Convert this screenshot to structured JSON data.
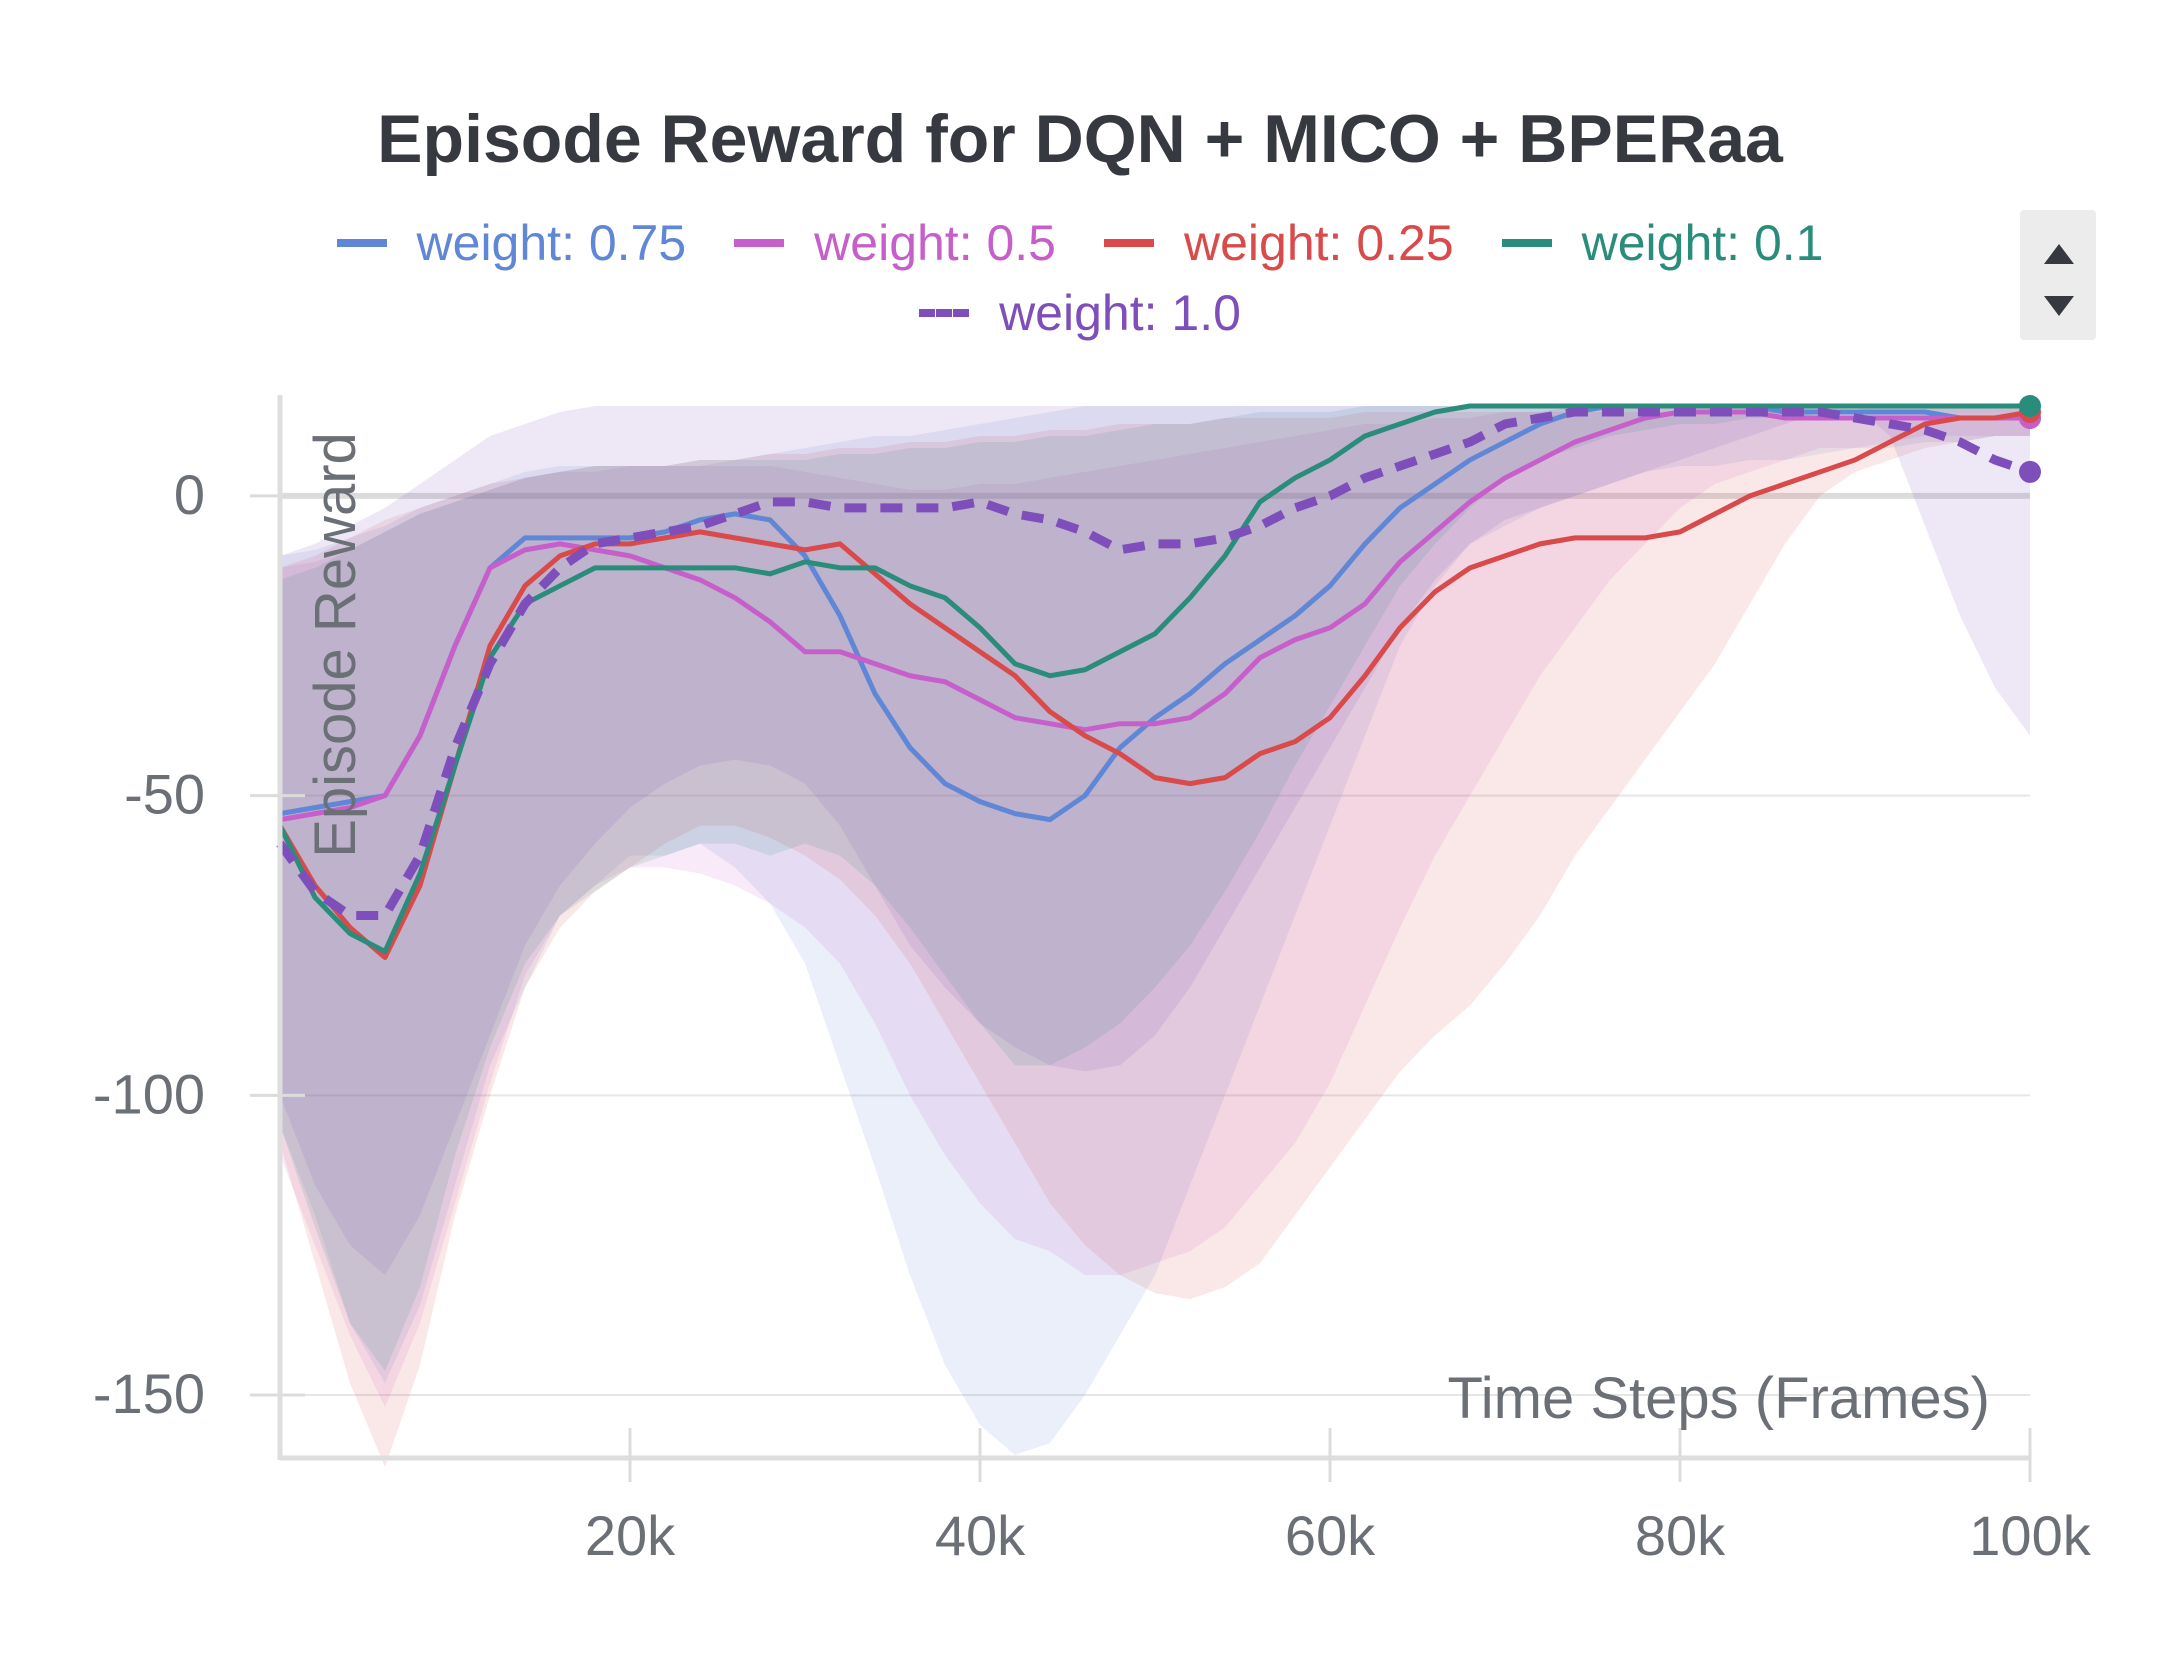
{
  "chart_data": {
    "type": "line",
    "title": "Episode Reward for DQN + MICO + BPERaa",
    "xlabel": "Time Steps (Frames)",
    "ylabel": "Episode Reward",
    "xlim": [
      0,
      100000
    ],
    "ylim": [
      -160,
      16
    ],
    "x_ticks": [
      20000,
      40000,
      60000,
      80000,
      100000
    ],
    "x_tick_labels": [
      "20k",
      "40k",
      "60k",
      "80k",
      "100k"
    ],
    "y_ticks": [
      0,
      -50,
      -100,
      -150
    ],
    "y_tick_labels": [
      "0",
      "-50",
      "-100",
      "-150"
    ],
    "grid": true,
    "legend": "top",
    "series": [
      {
        "name": "weight: 0.75",
        "color": "#5f87d6",
        "dash": false,
        "x": [
          0,
          2000,
          4000,
          6000,
          8000,
          10000,
          12000,
          14000,
          16000,
          18000,
          20000,
          22000,
          24000,
          26000,
          28000,
          30000,
          32000,
          34000,
          36000,
          38000,
          40000,
          42000,
          44000,
          46000,
          48000,
          50000,
          52000,
          54000,
          56000,
          58000,
          60000,
          62000,
          64000,
          66000,
          68000,
          70000,
          72000,
          74000,
          76000,
          78000,
          80000,
          82000,
          84000,
          86000,
          88000,
          90000,
          92000,
          94000,
          96000,
          98000,
          100000
        ],
        "y": [
          -53,
          -52,
          -51,
          -50,
          -40,
          -25,
          -12,
          -7,
          -7,
          -7,
          -7,
          -6,
          -4,
          -3,
          -4,
          -10,
          -20,
          -33,
          -42,
          -48,
          -51,
          -53,
          -54,
          -50,
          -42,
          -37,
          -33,
          -28,
          -24,
          -20,
          -15,
          -8,
          -2,
          2,
          6,
          9,
          12,
          14,
          15,
          15,
          15,
          15,
          15,
          14,
          14,
          14,
          14,
          14,
          13,
          13,
          13
        ],
        "upper": [
          -10,
          -9,
          -7,
          -5,
          -2,
          0,
          2,
          4,
          5,
          5,
          5,
          5,
          5,
          6,
          7,
          8,
          9,
          10,
          10,
          11,
          12,
          13,
          14,
          15,
          15,
          15,
          15,
          15,
          15,
          15,
          15,
          15,
          15,
          15,
          15,
          15,
          15,
          15,
          15,
          15,
          15,
          15,
          15,
          15,
          15,
          15,
          15,
          15,
          15,
          15,
          15
        ],
        "lower": [
          -105,
          -120,
          -138,
          -148,
          -135,
          -115,
          -95,
          -82,
          -70,
          -65,
          -60,
          -60,
          -58,
          -62,
          -68,
          -78,
          -95,
          -112,
          -130,
          -145,
          -155,
          -160,
          -158,
          -150,
          -140,
          -130,
          -115,
          -100,
          -85,
          -70,
          -55,
          -40,
          -25,
          -15,
          -8,
          -5,
          -2,
          0,
          2,
          4,
          5,
          5,
          6,
          6,
          7,
          8,
          8,
          9,
          9,
          10,
          10
        ]
      },
      {
        "name": "weight: 0.5",
        "color": "#c75fcb",
        "dash": false,
        "x": [
          0,
          2000,
          4000,
          6000,
          8000,
          10000,
          12000,
          14000,
          16000,
          18000,
          20000,
          22000,
          24000,
          26000,
          28000,
          30000,
          32000,
          34000,
          36000,
          38000,
          40000,
          42000,
          44000,
          46000,
          48000,
          50000,
          52000,
          54000,
          56000,
          58000,
          60000,
          62000,
          64000,
          66000,
          68000,
          70000,
          72000,
          74000,
          76000,
          78000,
          80000,
          82000,
          84000,
          86000,
          88000,
          90000,
          92000,
          94000,
          96000,
          98000,
          100000
        ],
        "y": [
          -54,
          -53,
          -52,
          -50,
          -40,
          -25,
          -12,
          -9,
          -8,
          -9,
          -10,
          -12,
          -14,
          -17,
          -21,
          -26,
          -26,
          -28,
          -30,
          -31,
          -34,
          -37,
          -38,
          -39,
          -38,
          -38,
          -37,
          -33,
          -27,
          -24,
          -22,
          -18,
          -11,
          -6,
          -1,
          3,
          6,
          9,
          11,
          13,
          14,
          14,
          14,
          13,
          13,
          13,
          13,
          13,
          13,
          13,
          13
        ],
        "upper": [
          -12,
          -11,
          -9,
          -6,
          -3,
          -1,
          1,
          3,
          4,
          4,
          5,
          5,
          5,
          5,
          5,
          4,
          3,
          2,
          1,
          1,
          2,
          2,
          3,
          4,
          5,
          6,
          7,
          8,
          9,
          10,
          11,
          12,
          12,
          13,
          13,
          14,
          14,
          14,
          14,
          14,
          14,
          14,
          14,
          14,
          14,
          14,
          14,
          14,
          14,
          14,
          14
        ],
        "lower": [
          -110,
          -125,
          -140,
          -152,
          -138,
          -118,
          -98,
          -80,
          -70,
          -65,
          -62,
          -62,
          -63,
          -65,
          -68,
          -72,
          -78,
          -88,
          -100,
          -110,
          -118,
          -124,
          -126,
          -130,
          -130,
          -128,
          -126,
          -122,
          -115,
          -108,
          -98,
          -85,
          -72,
          -60,
          -50,
          -40,
          -30,
          -22,
          -14,
          -8,
          -2,
          2,
          4,
          6,
          8,
          8,
          9,
          10,
          10,
          10,
          10
        ]
      },
      {
        "name": "weight: 0.25",
        "color": "#d94a4a",
        "dash": false,
        "x": [
          0,
          2000,
          4000,
          6000,
          8000,
          10000,
          12000,
          14000,
          16000,
          18000,
          20000,
          22000,
          24000,
          26000,
          28000,
          30000,
          32000,
          34000,
          36000,
          38000,
          40000,
          42000,
          44000,
          46000,
          48000,
          50000,
          52000,
          54000,
          56000,
          58000,
          60000,
          62000,
          64000,
          66000,
          68000,
          70000,
          72000,
          74000,
          76000,
          78000,
          80000,
          82000,
          84000,
          86000,
          88000,
          90000,
          92000,
          94000,
          96000,
          98000,
          100000
        ],
        "y": [
          -55,
          -65,
          -72,
          -77,
          -65,
          -45,
          -25,
          -15,
          -10,
          -8,
          -8,
          -7,
          -6,
          -7,
          -8,
          -9,
          -8,
          -13,
          -18,
          -22,
          -26,
          -30,
          -36,
          -40,
          -43,
          -47,
          -48,
          -47,
          -43,
          -41,
          -37,
          -30,
          -22,
          -16,
          -12,
          -10,
          -8,
          -7,
          -7,
          -7,
          -6,
          -3,
          0,
          2,
          4,
          6,
          9,
          12,
          13,
          13,
          14
        ],
        "upper": [
          -12,
          -10,
          -7,
          -4,
          -2,
          0,
          2,
          3,
          4,
          5,
          5,
          5,
          6,
          6,
          7,
          7,
          8,
          8,
          9,
          9,
          10,
          10,
          11,
          11,
          12,
          12,
          12,
          13,
          13,
          13,
          13,
          14,
          14,
          14,
          14,
          14,
          14,
          15,
          15,
          15,
          15,
          15,
          15,
          15,
          15,
          15,
          15,
          15,
          15,
          15,
          15
        ],
        "lower": [
          -108,
          -128,
          -148,
          -162,
          -145,
          -120,
          -100,
          -82,
          -72,
          -66,
          -62,
          -58,
          -55,
          -55,
          -57,
          -60,
          -64,
          -70,
          -78,
          -88,
          -98,
          -108,
          -118,
          -125,
          -130,
          -133,
          -134,
          -132,
          -128,
          -120,
          -112,
          -104,
          -96,
          -90,
          -85,
          -78,
          -70,
          -60,
          -52,
          -44,
          -36,
          -28,
          -18,
          -8,
          0,
          4,
          6,
          8,
          9,
          10,
          10
        ]
      },
      {
        "name": "weight: 0.1",
        "color": "#2a8c7a",
        "dash": false,
        "x": [
          0,
          2000,
          4000,
          6000,
          8000,
          10000,
          12000,
          14000,
          16000,
          18000,
          20000,
          22000,
          24000,
          26000,
          28000,
          30000,
          32000,
          34000,
          36000,
          38000,
          40000,
          42000,
          44000,
          46000,
          48000,
          50000,
          52000,
          54000,
          56000,
          58000,
          60000,
          62000,
          64000,
          66000,
          68000,
          70000,
          72000,
          74000,
          76000,
          78000,
          80000,
          82000,
          84000,
          86000,
          88000,
          90000,
          92000,
          94000,
          96000,
          98000,
          100000
        ],
        "y": [
          -55,
          -67,
          -73,
          -76,
          -63,
          -45,
          -27,
          -18,
          -15,
          -12,
          -12,
          -12,
          -12,
          -12,
          -13,
          -11,
          -12,
          -12,
          -15,
          -17,
          -22,
          -28,
          -30,
          -29,
          -26,
          -23,
          -17,
          -10,
          -1,
          3,
          6,
          10,
          12,
          14,
          15,
          15,
          15,
          15,
          15,
          15,
          15,
          15,
          15,
          15,
          15,
          15,
          15,
          15,
          15,
          15,
          15
        ],
        "upper": [
          -14,
          -12,
          -9,
          -6,
          -3,
          -1,
          1,
          3,
          4,
          5,
          5,
          5,
          6,
          6,
          6,
          6,
          7,
          7,
          8,
          8,
          9,
          9,
          10,
          10,
          11,
          12,
          12,
          13,
          14,
          14,
          14,
          15,
          15,
          15,
          15,
          15,
          15,
          15,
          15,
          15,
          15,
          15,
          15,
          15,
          15,
          15,
          15,
          15,
          15,
          15,
          15
        ],
        "lower": [
          -105,
          -122,
          -138,
          -146,
          -132,
          -110,
          -92,
          -78,
          -70,
          -66,
          -62,
          -60,
          -58,
          -58,
          -60,
          -58,
          -60,
          -65,
          -72,
          -80,
          -88,
          -95,
          -95,
          -92,
          -88,
          -82,
          -75,
          -66,
          -56,
          -45,
          -35,
          -25,
          -15,
          -8,
          -2,
          3,
          6,
          8,
          10,
          11,
          12,
          12,
          13,
          13,
          13,
          14,
          14,
          14,
          14,
          14,
          14
        ]
      },
      {
        "name": "weight: 1.0",
        "color": "#7e4fbb",
        "dash": true,
        "x": [
          0,
          2000,
          4000,
          6000,
          8000,
          10000,
          12000,
          14000,
          16000,
          18000,
          20000,
          22000,
          24000,
          26000,
          28000,
          30000,
          32000,
          34000,
          36000,
          38000,
          40000,
          42000,
          44000,
          46000,
          48000,
          50000,
          52000,
          54000,
          56000,
          58000,
          60000,
          62000,
          64000,
          66000,
          68000,
          70000,
          72000,
          74000,
          76000,
          78000,
          80000,
          82000,
          84000,
          86000,
          88000,
          90000,
          92000,
          94000,
          96000,
          98000,
          100000
        ],
        "y": [
          -58,
          -66,
          -70,
          -70,
          -60,
          -42,
          -28,
          -18,
          -12,
          -8,
          -7,
          -6,
          -5,
          -3,
          -1,
          -1,
          -2,
          -2,
          -2,
          -2,
          -1,
          -3,
          -4,
          -6,
          -9,
          -8,
          -8,
          -7,
          -5,
          -2,
          0,
          3,
          5,
          7,
          9,
          12,
          13,
          14,
          14,
          14,
          14,
          14,
          14,
          14,
          14,
          13,
          12,
          11,
          9,
          6,
          4
        ],
        "upper": [
          -10,
          -8,
          -5,
          -2,
          2,
          6,
          10,
          12,
          14,
          15,
          15,
          15,
          15,
          15,
          15,
          15,
          15,
          15,
          15,
          15,
          15,
          15,
          15,
          15,
          15,
          15,
          15,
          15,
          15,
          15,
          15,
          15,
          15,
          15,
          15,
          15,
          15,
          15,
          15,
          15,
          15,
          15,
          15,
          15,
          15,
          15,
          15,
          15,
          15,
          15,
          15
        ],
        "lower": [
          -100,
          -115,
          -125,
          -130,
          -120,
          -105,
          -90,
          -75,
          -65,
          -58,
          -52,
          -48,
          -45,
          -44,
          -45,
          -48,
          -55,
          -65,
          -75,
          -82,
          -88,
          -92,
          -95,
          -96,
          -95,
          -90,
          -82,
          -72,
          -62,
          -52,
          -42,
          -32,
          -22,
          -14,
          -8,
          -4,
          -2,
          0,
          2,
          4,
          6,
          8,
          10,
          12,
          14,
          15,
          10,
          -5,
          -20,
          -32,
          -40
        ]
      }
    ]
  }
}
